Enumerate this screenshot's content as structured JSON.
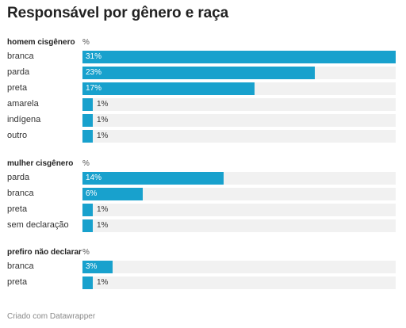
{
  "title": "Responsável por gênero e raça",
  "footer": "Criado com Datawrapper",
  "colors": {
    "bar": "#18a1cd",
    "track": "#f1f1f1"
  },
  "chart_data": {
    "type": "bar",
    "orientation": "horizontal",
    "title": "Responsável por gênero e raça",
    "xlim": [
      0,
      31
    ],
    "groups": [
      {
        "name": "homem cisgênero",
        "unit": "%",
        "rows": [
          {
            "label": "branca",
            "value": 31,
            "display": "31%"
          },
          {
            "label": "parda",
            "value": 23,
            "display": "23%"
          },
          {
            "label": "preta",
            "value": 17,
            "display": "17%"
          },
          {
            "label": "amarela",
            "value": 1,
            "display": "1%"
          },
          {
            "label": "indígena",
            "value": 1,
            "display": "1%"
          },
          {
            "label": "outro",
            "value": 1,
            "display": "1%"
          }
        ]
      },
      {
        "name": "mulher cisgênero",
        "unit": "%",
        "rows": [
          {
            "label": "parda",
            "value": 14,
            "display": "14%"
          },
          {
            "label": "branca",
            "value": 6,
            "display": "6%"
          },
          {
            "label": "preta",
            "value": 1,
            "display": "1%"
          },
          {
            "label": "sem declaração",
            "value": 1,
            "display": "1%"
          }
        ]
      },
      {
        "name": "prefiro não declarar",
        "unit": "%",
        "rows": [
          {
            "label": "branca",
            "value": 3,
            "display": "3%"
          },
          {
            "label": "preta",
            "value": 1,
            "display": "1%"
          }
        ]
      }
    ]
  }
}
